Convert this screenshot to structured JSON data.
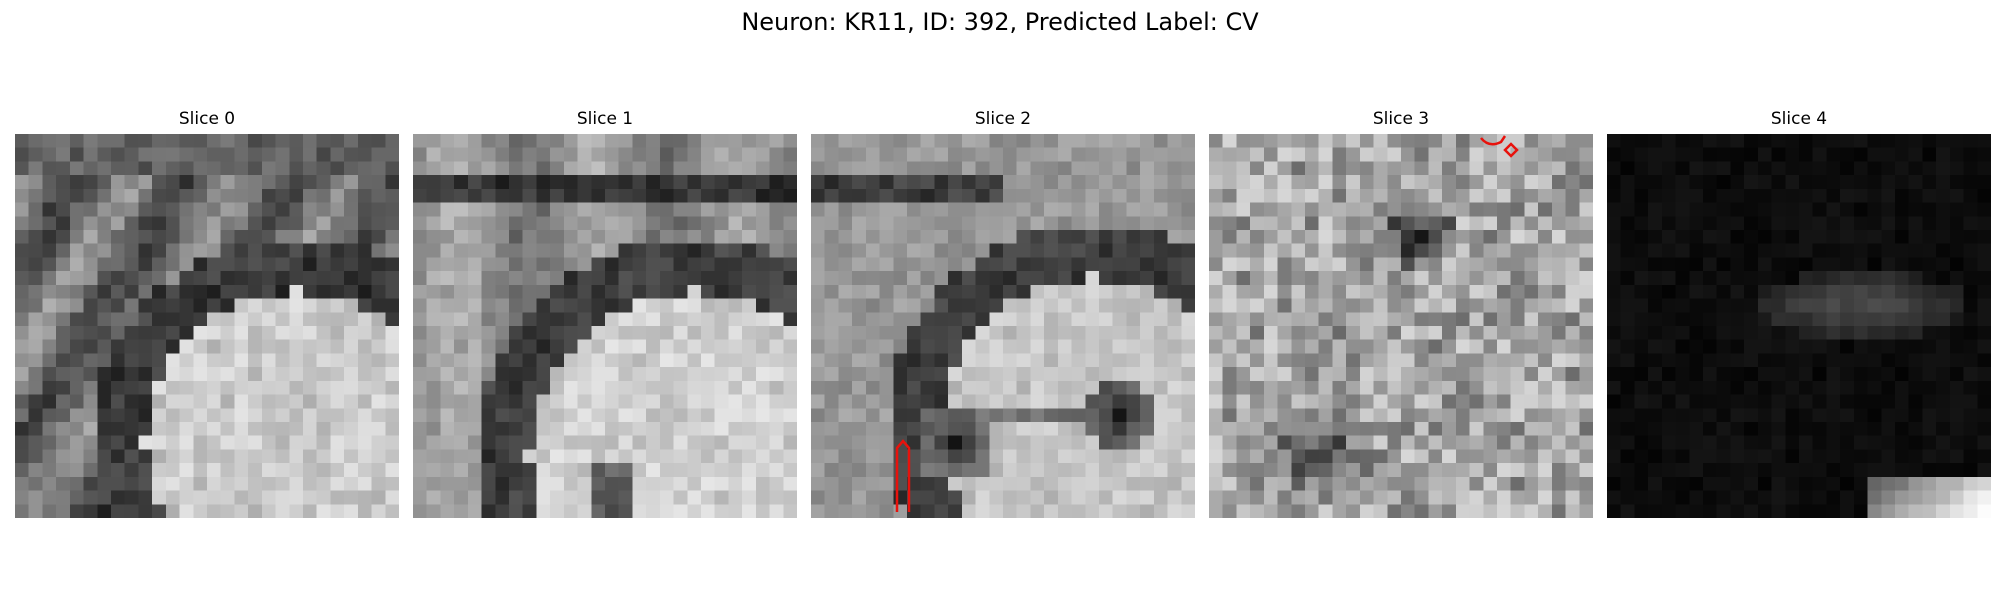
{
  "figure": {
    "title": "Neuron: KR11, ID: 392, Predicted Label: CV"
  },
  "panels": [
    {
      "title": "Slice 0",
      "style": "bright"
    },
    {
      "title": "Slice 1",
      "style": "bright"
    },
    {
      "title": "Slice 2",
      "style": "bright"
    },
    {
      "title": "Slice 3",
      "style": "noisy"
    },
    {
      "title": "Slice 4",
      "style": "dark"
    }
  ],
  "colors": {
    "annotation": "#e8120c",
    "background": "#ffffff"
  }
}
